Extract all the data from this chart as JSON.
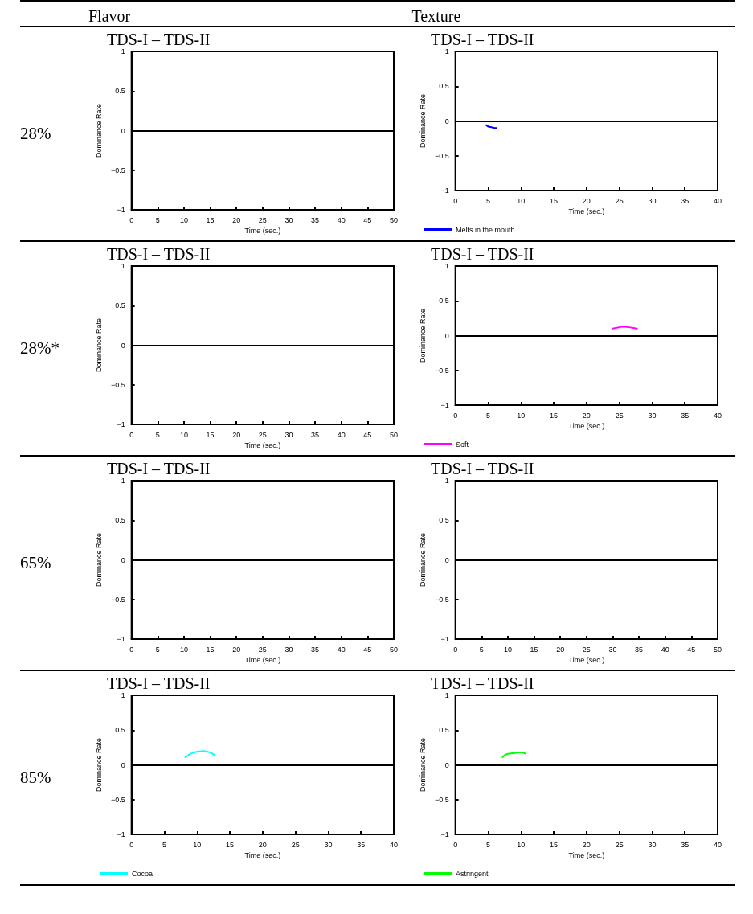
{
  "chart_data": [
    {
      "type": "line",
      "title": "TDS-I – TDS-II",
      "annotations": [
        "Flavor",
        "28%"
      ],
      "xlabel": "Time (sec.)",
      "ylabel": "Dominance Rate",
      "xlim": [
        0,
        50
      ],
      "xticks": [
        0,
        5,
        10,
        15,
        20,
        25,
        30,
        35,
        40,
        45,
        50
      ],
      "ylim": [
        -1,
        1
      ],
      "yticks": [
        -1,
        -0.5,
        0,
        0.5,
        1
      ],
      "ref_lines": [
        {
          "axis": "y",
          "value": 0,
          "color": "#000000"
        }
      ]
    },
    {
      "type": "line",
      "title": "TDS-I – TDS-II",
      "annotations": [
        "Texture"
      ],
      "xlabel": "Time (sec.)",
      "ylabel": "Dominance Rate",
      "xlim": [
        0,
        40
      ],
      "xticks": [
        0,
        5,
        10,
        15,
        20,
        25,
        30,
        35,
        40
      ],
      "ylim": [
        -1,
        1
      ],
      "yticks": [
        -1,
        -0.5,
        0,
        0.5,
        1
      ],
      "legend": "bottom left",
      "series": [
        {
          "name": "Melts.in.the.mouth",
          "color": "#0000ff",
          "x": [
            4.7,
            5,
            5.5,
            6,
            6.3
          ],
          "values": [
            -0.06,
            -0.08,
            -0.09,
            -0.1,
            -0.1
          ]
        }
      ],
      "ref_lines": [
        {
          "axis": "y",
          "value": 0,
          "color": "#000000"
        }
      ]
    },
    {
      "type": "line",
      "title": "TDS-I – TDS-II",
      "annotations": [
        "28%*"
      ],
      "xlabel": "Time (sec.)",
      "ylabel": "Dominance Rate",
      "xlim": [
        0,
        50
      ],
      "xticks": [
        0,
        5,
        10,
        15,
        20,
        25,
        30,
        35,
        40,
        45,
        50
      ],
      "ylim": [
        -1,
        1
      ],
      "yticks": [
        -1,
        -0.5,
        0,
        0.5,
        1
      ],
      "ref_lines": [
        {
          "axis": "y",
          "value": 0,
          "color": "#000000"
        }
      ]
    },
    {
      "type": "line",
      "title": "TDS-I – TDS-II",
      "xlabel": "Time (sec.)",
      "ylabel": "Dominance Rate",
      "xlim": [
        0,
        40
      ],
      "xticks": [
        0,
        5,
        10,
        15,
        20,
        25,
        30,
        35,
        40
      ],
      "ylim": [
        -1,
        1
      ],
      "yticks": [
        -1,
        -0.5,
        0,
        0.5,
        1
      ],
      "legend": "bottom left",
      "series": [
        {
          "name": "Soft",
          "color": "#ff00ff",
          "x": [
            24,
            25,
            25.5,
            26.5,
            27.7
          ],
          "values": [
            0.1,
            0.12,
            0.13,
            0.12,
            0.1
          ]
        }
      ],
      "ref_lines": [
        {
          "axis": "y",
          "value": 0,
          "color": "#000000"
        }
      ]
    },
    {
      "type": "line",
      "title": "TDS-I – TDS-II",
      "annotations": [
        "65%"
      ],
      "xlabel": "Time (sec.)",
      "ylabel": "Dominance Rate",
      "xlim": [
        0,
        50
      ],
      "xticks": [
        0,
        5,
        10,
        15,
        20,
        25,
        30,
        35,
        40,
        45,
        50
      ],
      "ylim": [
        -1,
        1
      ],
      "yticks": [
        -1,
        -0.5,
        0,
        0.5,
        1
      ],
      "ref_lines": [
        {
          "axis": "y",
          "value": 0,
          "color": "#000000"
        }
      ]
    },
    {
      "type": "line",
      "title": "TDS-I – TDS-II",
      "xlabel": "Time (sec.)",
      "ylabel": "Dominance Rate",
      "xlim": [
        0,
        50
      ],
      "xticks": [
        0,
        5,
        10,
        15,
        20,
        25,
        30,
        35,
        40,
        45,
        50
      ],
      "ylim": [
        -1,
        1
      ],
      "yticks": [
        -1,
        -0.5,
        0,
        0.5,
        1
      ],
      "ref_lines": [
        {
          "axis": "y",
          "value": 0,
          "color": "#000000"
        }
      ]
    },
    {
      "type": "line",
      "title": "TDS-I – TDS-II",
      "annotations": [
        "85%"
      ],
      "xlabel": "Time (sec.)",
      "ylabel": "Dominance Rate",
      "xlim": [
        0,
        40
      ],
      "xticks": [
        0,
        5,
        10,
        15,
        20,
        25,
        30,
        35,
        40
      ],
      "ylim": [
        -1,
        1
      ],
      "yticks": [
        -1,
        -0.5,
        0,
        0.5,
        1
      ],
      "legend": "bottom left",
      "series": [
        {
          "name": "Cocoa",
          "color": "#00ffff",
          "x": [
            8.2,
            9,
            10,
            11,
            12,
            12.7
          ],
          "values": [
            0.11,
            0.16,
            0.19,
            0.2,
            0.18,
            0.14
          ]
        }
      ],
      "ref_lines": [
        {
          "axis": "y",
          "value": 0,
          "color": "#000000"
        }
      ]
    },
    {
      "type": "line",
      "title": "TDS-I – TDS-II",
      "xlabel": "Time (sec.)",
      "ylabel": "Dominance Rate",
      "xlim": [
        0,
        40
      ],
      "xticks": [
        0,
        5,
        10,
        15,
        20,
        25,
        30,
        35,
        40
      ],
      "ylim": [
        -1,
        1
      ],
      "yticks": [
        -1,
        -0.5,
        0,
        0.5,
        1
      ],
      "legend": "bottom left",
      "series": [
        {
          "name": "Astringent",
          "color": "#00ff00",
          "x": [
            7.2,
            7.5,
            8,
            9,
            9.7,
            10.2,
            10.7
          ],
          "values": [
            0.11,
            0.14,
            0.16,
            0.17,
            0.18,
            0.18,
            0.16
          ]
        }
      ],
      "ref_lines": [
        {
          "axis": "y",
          "value": 0,
          "color": "#000000"
        }
      ]
    }
  ]
}
